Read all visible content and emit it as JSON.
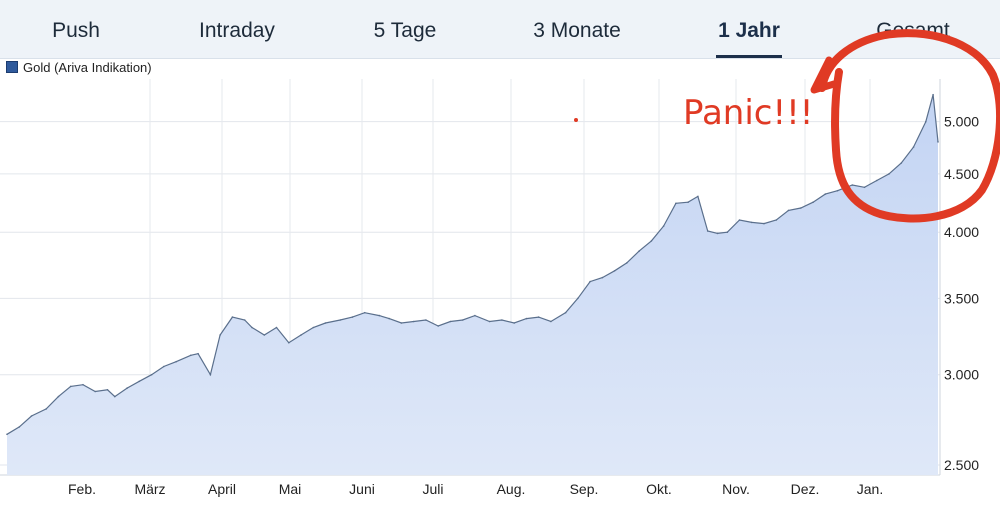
{
  "tabs": [
    {
      "label": "Push",
      "active": false
    },
    {
      "label": "Intraday",
      "active": false
    },
    {
      "label": "5 Tage",
      "active": false
    },
    {
      "label": "3 Monate",
      "active": false
    },
    {
      "label": "1 Jahr",
      "active": true
    },
    {
      "label": "Gesamt",
      "active": false
    }
  ],
  "colors": {
    "line": "#5a6f8c",
    "fill_top": "#c3d4f3",
    "fill_bottom": "#dfe8f8",
    "annotation": "#e03a24",
    "active_tab": "#1c2f4a"
  },
  "annotation": {
    "text": "Panic!!!"
  },
  "chart_data": {
    "type": "area",
    "title": "",
    "xlabel": "",
    "ylabel": "",
    "legend": {
      "items": [
        "Gold (Ariva Indikation)"
      ],
      "placement": "top-left"
    },
    "y_scale": "log",
    "ylim": [
      2450,
      5450
    ],
    "y_ticks": [
      2500,
      3000,
      3500,
      4000,
      4500,
      5000
    ],
    "y_tick_labels": [
      "2.500",
      "3.000",
      "3.500",
      "4.000",
      "4.500",
      "5.000"
    ],
    "x_ticks": [
      "Feb.",
      "März",
      "April",
      "Mai",
      "Juni",
      "Juli",
      "Aug.",
      "Sep.",
      "Okt.",
      "Nov.",
      "Dez.",
      "Jan."
    ],
    "grid": true,
    "series": [
      {
        "name": "Gold (Ariva Indikation)",
        "x": [
          "2025-01-15",
          "2025-01-20",
          "2025-01-25",
          "2025-01-31",
          "2025-02-05",
          "2025-02-10",
          "2025-02-15",
          "2025-02-20",
          "2025-02-25",
          "2025-02-28",
          "2025-03-05",
          "2025-03-10",
          "2025-03-15",
          "2025-03-20",
          "2025-03-25",
          "2025-03-31",
          "2025-04-03",
          "2025-04-08",
          "2025-04-12",
          "2025-04-17",
          "2025-04-22",
          "2025-04-25",
          "2025-04-30",
          "2025-05-05",
          "2025-05-10",
          "2025-05-15",
          "2025-05-20",
          "2025-05-25",
          "2025-05-31",
          "2025-06-05",
          "2025-06-10",
          "2025-06-16",
          "2025-06-20",
          "2025-06-25",
          "2025-06-30",
          "2025-07-05",
          "2025-07-10",
          "2025-07-15",
          "2025-07-20",
          "2025-07-25",
          "2025-07-31",
          "2025-08-05",
          "2025-08-10",
          "2025-08-15",
          "2025-08-20",
          "2025-08-25",
          "2025-08-31",
          "2025-09-05",
          "2025-09-10",
          "2025-09-15",
          "2025-09-20",
          "2025-09-25",
          "2025-09-30",
          "2025-10-05",
          "2025-10-10",
          "2025-10-15",
          "2025-10-20",
          "2025-10-24",
          "2025-10-28",
          "2025-11-01",
          "2025-11-05",
          "2025-11-10",
          "2025-11-15",
          "2025-11-20",
          "2025-11-25",
          "2025-11-30",
          "2025-12-05",
          "2025-12-10",
          "2025-12-15",
          "2025-12-20",
          "2025-12-26",
          "2025-12-31",
          "2026-01-05",
          "2026-01-10",
          "2026-01-15",
          "2026-01-20",
          "2026-01-25",
          "2026-01-28",
          "2026-01-30"
        ],
        "values": [
          2660,
          2700,
          2760,
          2800,
          2870,
          2930,
          2940,
          2900,
          2910,
          2870,
          2920,
          2960,
          3000,
          3050,
          3080,
          3120,
          3130,
          3000,
          3250,
          3370,
          3350,
          3300,
          3250,
          3300,
          3200,
          3250,
          3300,
          3330,
          3350,
          3370,
          3400,
          3380,
          3360,
          3330,
          3340,
          3350,
          3310,
          3340,
          3350,
          3380,
          3340,
          3350,
          3330,
          3360,
          3370,
          3340,
          3400,
          3500,
          3620,
          3650,
          3700,
          3760,
          3850,
          3930,
          4050,
          4240,
          4250,
          4300,
          4010,
          3990,
          4000,
          4100,
          4080,
          4070,
          4100,
          4180,
          4200,
          4250,
          4320,
          4350,
          4400,
          4380,
          4440,
          4500,
          4600,
          4750,
          5000,
          5280,
          4800
        ]
      }
    ]
  }
}
